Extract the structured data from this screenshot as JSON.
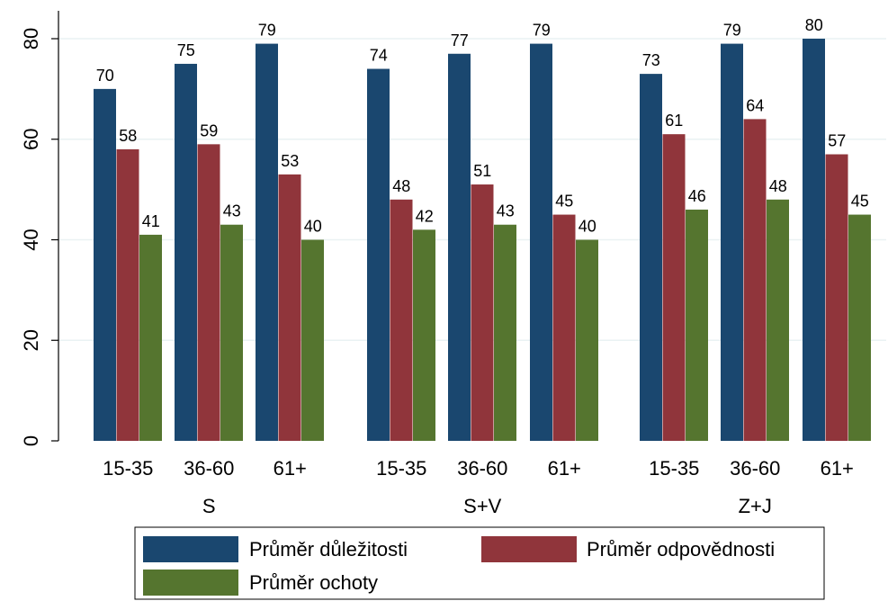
{
  "chart_data": {
    "type": "bar",
    "groups": [
      {
        "label": "S",
        "categories": [
          "15-35",
          "36-60",
          "61+"
        ]
      },
      {
        "label": "S+V",
        "categories": [
          "15-35",
          "36-60",
          "61+"
        ]
      },
      {
        "label": "Z+J",
        "categories": [
          "15-35",
          "36-60",
          "61+"
        ]
      }
    ],
    "series": [
      {
        "name": "Průměr důležitosti",
        "color": "#1a476f",
        "values": [
          70,
          75,
          79,
          74,
          77,
          79,
          73,
          79,
          80
        ]
      },
      {
        "name": "Průměr odpovědnosti",
        "color": "#90353b",
        "values": [
          58,
          59,
          53,
          48,
          51,
          45,
          61,
          64,
          57
        ]
      },
      {
        "name": "Průměr ochoty",
        "color": "#55752f",
        "values": [
          41,
          43,
          40,
          42,
          43,
          40,
          46,
          48,
          45
        ]
      }
    ],
    "value_labels": [
      [
        "70",
        "75",
        "79",
        "74",
        "77",
        "79",
        "73",
        "79",
        "80"
      ],
      [
        "58",
        "59",
        "53",
        "48",
        "51",
        "45",
        "61",
        "64",
        "57"
      ],
      [
        "41",
        "43",
        "40",
        "42",
        "43",
        "40",
        "46",
        "48",
        "45"
      ]
    ],
    "y_ticks": [
      0,
      20,
      40,
      60,
      80
    ],
    "y_tick_labels": [
      "0",
      "20",
      "40",
      "60",
      "80"
    ],
    "ylim": [
      0,
      80
    ],
    "grid": true,
    "legend": "bottom"
  }
}
